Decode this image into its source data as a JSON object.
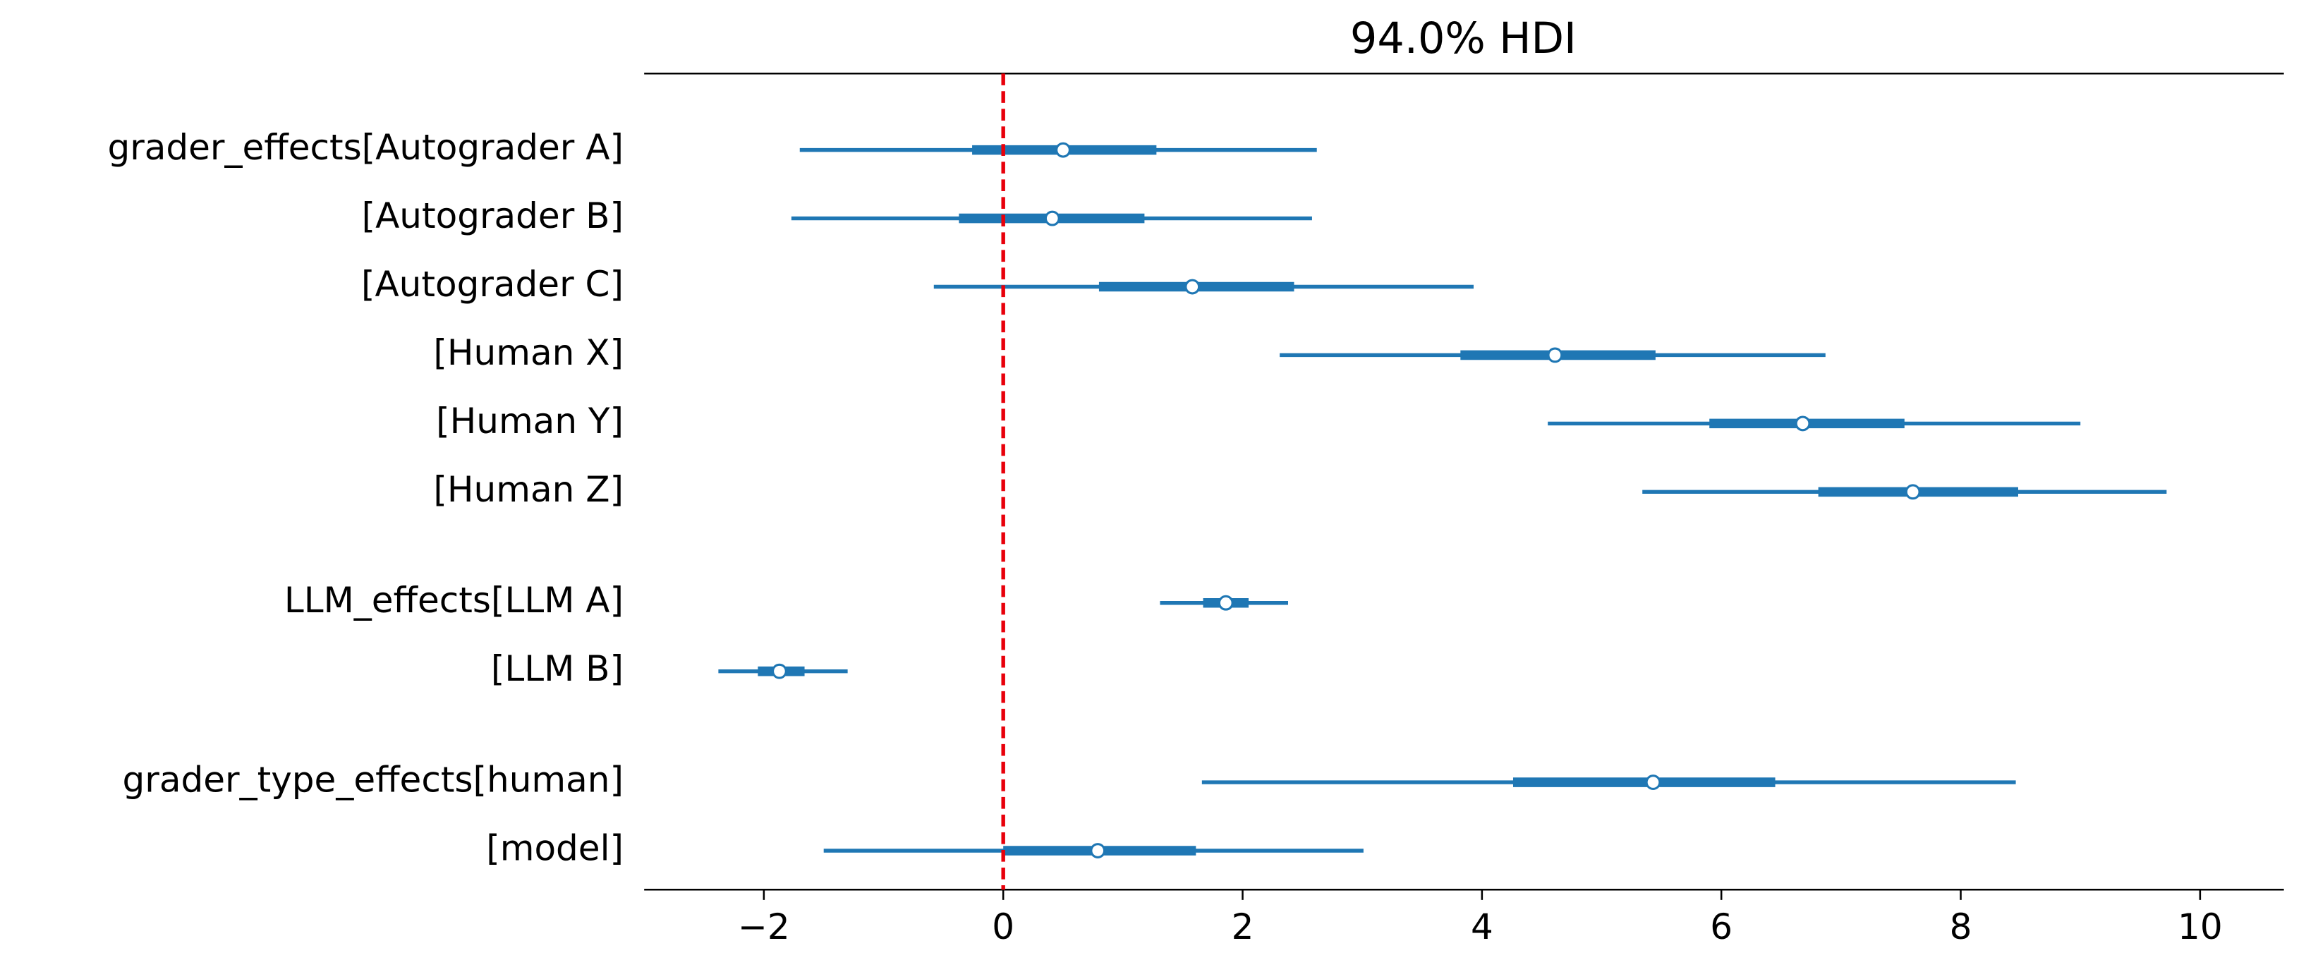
{
  "chart_data": {
    "type": "forest",
    "title": "94.0% HDI",
    "categories": [
      "grader_effects[Autograder A]",
      "[Autograder B]",
      "[Autograder C]",
      "[Human X]",
      "[Human Y]",
      "[Human Z]",
      "LLM_effects[LLM A]",
      "[LLM B]",
      "grader_type_effects[human]",
      "[model]"
    ],
    "median": [
      0.5,
      0.41,
      1.58,
      4.61,
      6.68,
      7.6,
      1.86,
      -1.87,
      5.43,
      0.79
    ],
    "hdi_94": [
      [
        -1.7,
        2.62
      ],
      [
        -1.77,
        2.58
      ],
      [
        -0.58,
        3.93
      ],
      [
        2.31,
        6.87
      ],
      [
        4.55,
        9.0
      ],
      [
        5.34,
        9.72
      ],
      [
        1.31,
        2.38
      ],
      [
        -2.38,
        -1.3
      ],
      [
        1.66,
        8.46
      ],
      [
        -1.5,
        3.01
      ]
    ],
    "hdi_50": [
      [
        -0.26,
        1.28
      ],
      [
        -0.37,
        1.18
      ],
      [
        0.8,
        2.43
      ],
      [
        3.82,
        5.45
      ],
      [
        5.9,
        7.53
      ],
      [
        6.81,
        8.48
      ],
      [
        1.67,
        2.05
      ],
      [
        -2.05,
        -1.66
      ],
      [
        4.26,
        6.45
      ],
      [
        0.0,
        1.61
      ]
    ],
    "color": "#1f77b4",
    "reference_line": 0,
    "reference_color": "#e8000b",
    "xlim": [
      -3.0,
      10.7
    ],
    "xticks": [
      {
        "value": -2,
        "label": "−2"
      },
      0,
      2,
      4,
      6,
      8,
      10
    ]
  }
}
